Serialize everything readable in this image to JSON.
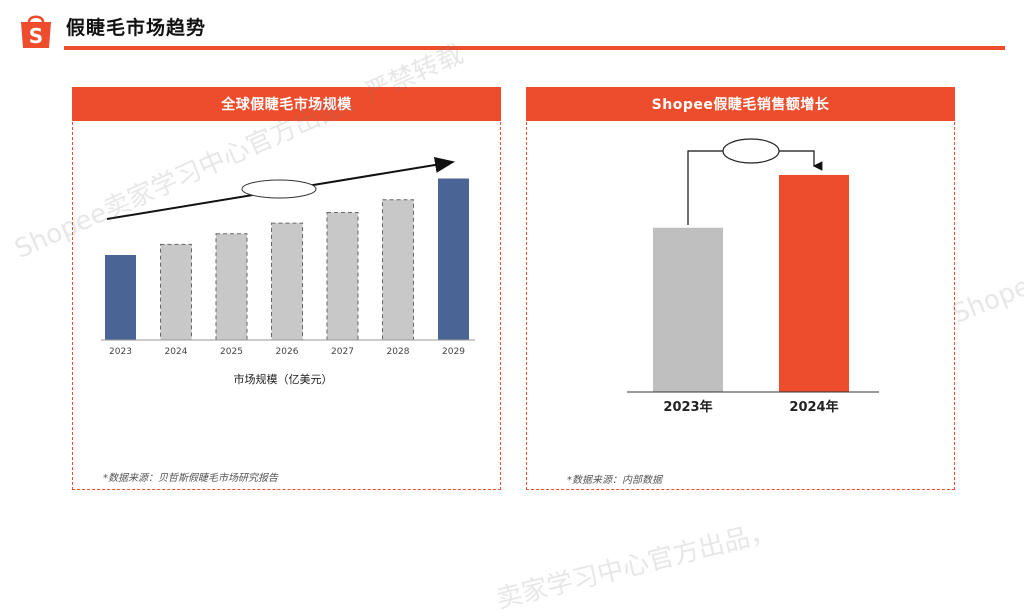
{
  "header": {
    "title": "假睫毛市场趋势",
    "logo_letter": "S",
    "accent_color": "#EE4D2D"
  },
  "left_panel": {
    "title": "全球假睫毛市场规模",
    "caption": "市场规模（亿美元）",
    "source": "*数据来源：贝哲斯假睫毛市场研究报告"
  },
  "right_panel": {
    "title": "Shopee假睫毛销售额增长",
    "source": "*数据来源：内部数据"
  },
  "watermarks": [
    "Shopee卖家学习中心官方出品，严禁转载",
    "Shope",
    "卖家学习中心官方出品，"
  ],
  "chart_data": [
    {
      "type": "bar",
      "categories": [
        "2023",
        "2024",
        "2025",
        "2026",
        "2027",
        "2028",
        "2029"
      ],
      "values": [
        40,
        45,
        50,
        55,
        60,
        66,
        76
      ],
      "styles": [
        "actual",
        "forecast",
        "forecast",
        "forecast",
        "forecast",
        "forecast",
        "actual"
      ],
      "colors": {
        "actual": "#4A6595",
        "forecast": "#C8C8C8"
      },
      "ylim": [
        0,
        80
      ],
      "trend_arrow": true
    },
    {
      "type": "bar",
      "categories": [
        "2023年",
        "2024年"
      ],
      "values": [
        56,
        74
      ],
      "colors": [
        "#BFBFBF",
        "#EE4D2D"
      ],
      "ylim": [
        0,
        75
      ]
    }
  ]
}
